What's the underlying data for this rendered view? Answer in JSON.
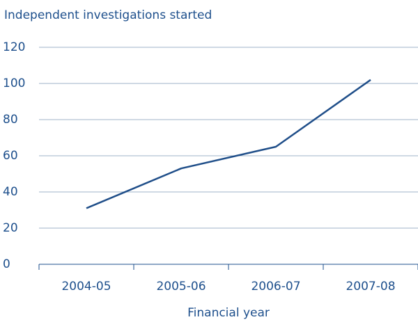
{
  "chart_data": {
    "type": "line",
    "title": "Independent investigations started",
    "x_label": "Financial year",
    "categories": [
      "2004-05",
      "2005-06",
      "2006-07",
      "2007-08"
    ],
    "series": [
      {
        "name": "Independent investigations started",
        "color": "#1f4e89",
        "values": [
          31,
          53,
          65,
          102
        ]
      }
    ],
    "ylim": [
      0,
      120
    ],
    "yticks": [
      0,
      20,
      40,
      60,
      80,
      100,
      120
    ],
    "grid": true
  }
}
